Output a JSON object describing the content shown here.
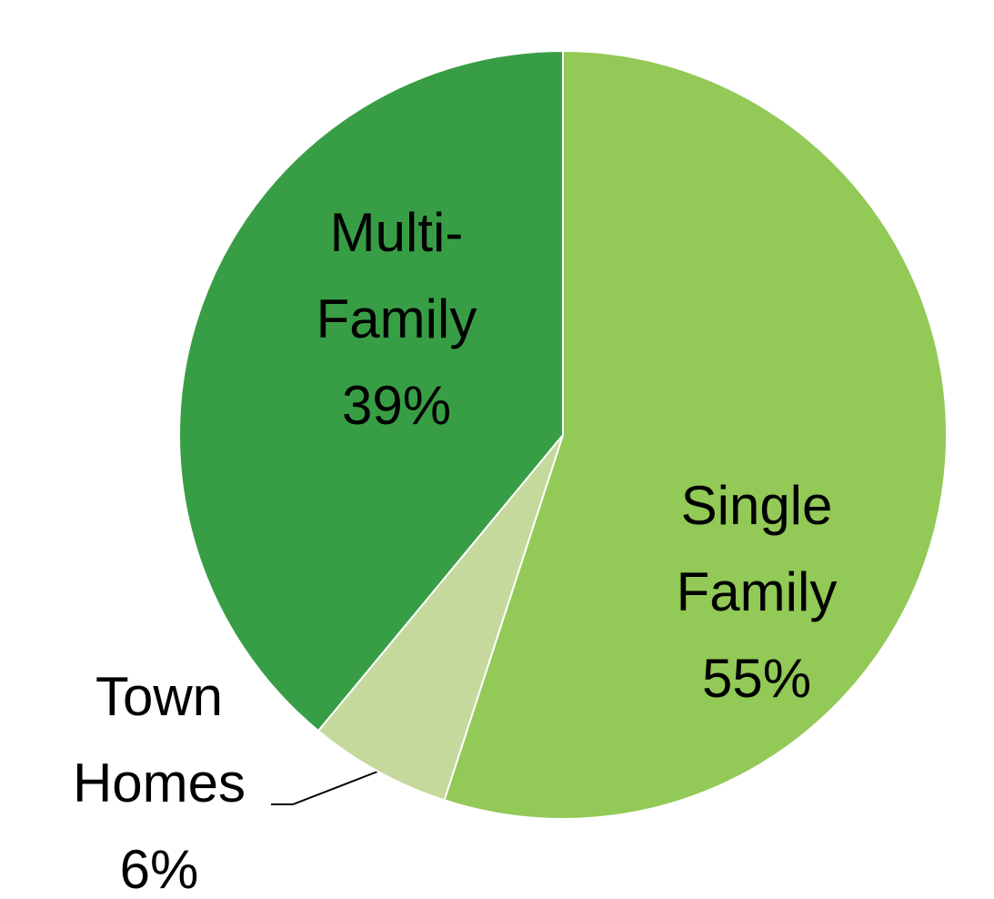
{
  "chart_data": {
    "type": "pie",
    "categories": [
      "Single Family",
      "Town Homes",
      "Multi-Family"
    ],
    "values": [
      55,
      6,
      39
    ],
    "value_labels": [
      "55%",
      "6%",
      "39%"
    ],
    "colors": [
      "#92c957",
      "#c4d99b",
      "#389e45"
    ]
  }
}
